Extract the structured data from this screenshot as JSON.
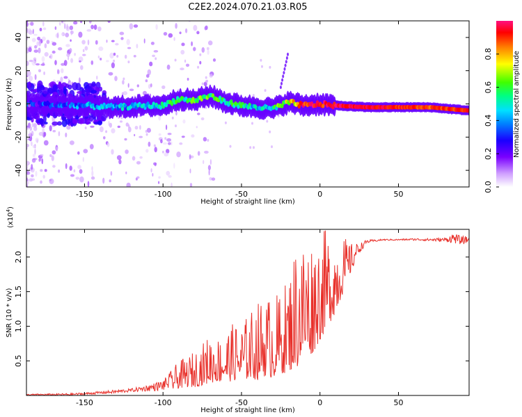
{
  "title": "C2E2.2024.070.21.03.R05",
  "chart_data": [
    {
      "type": "heatmap",
      "name": "spectrogram",
      "xlabel": "Height of straight line (km)",
      "ylabel": "Frequency (Hz)",
      "xlim": [
        -187,
        95
      ],
      "ylim": [
        -50,
        50
      ],
      "xticks": [
        -150,
        -100,
        -50,
        0,
        50
      ],
      "yticks": [
        -40,
        -20,
        0,
        20,
        40
      ],
      "colorbar": {
        "label": "Normalized spectral amplitude",
        "range": [
          0.0,
          1.0
        ],
        "ticks": [
          0.0,
          0.2,
          0.4,
          0.6,
          0.8
        ],
        "colormap": [
          "#ffffff",
          "#d0a0ff",
          "#7a00ff",
          "#1a00ff",
          "#0080ff",
          "#00e0ff",
          "#00ff80",
          "#40ff00",
          "#ffff00",
          "#ff8000",
          "#ff0000",
          "#ff1080"
        ]
      },
      "ridge": {
        "description_free_points_x": [
          -187,
          -150,
          -130,
          -110,
          -100,
          -90,
          -80,
          -70,
          -60,
          -50,
          -40,
          -30,
          -20,
          -10,
          0,
          10,
          30,
          50,
          70,
          95
        ],
        "frequency_hz": [
          0,
          -1,
          -2,
          -1,
          -1,
          3,
          2,
          5,
          1,
          -1,
          -2,
          -3,
          1,
          -1,
          0,
          -1,
          -2,
          -2,
          -2,
          -4
        ],
        "amplitude": [
          0.25,
          0.35,
          0.4,
          0.45,
          0.5,
          0.55,
          0.55,
          0.6,
          0.55,
          0.5,
          0.45,
          0.5,
          0.7,
          0.9,
          0.95,
          0.95,
          0.95,
          0.9,
          0.85,
          0.9
        ]
      }
    },
    {
      "type": "line",
      "name": "snr",
      "xlabel": "Height of straight line (km)",
      "ylabel": "SNR (10 * v/v)",
      "multiplier": "(x10",
      "multiplier_exp": "4",
      "multiplier_close": ")",
      "xlim": [
        -187,
        95
      ],
      "ylim": [
        0,
        2.4
      ],
      "xticks": [
        -150,
        -100,
        -50,
        0,
        50
      ],
      "yticks": [
        0.5,
        1.0,
        1.5,
        2.0
      ],
      "color": "#e8302a",
      "x_envelope": [
        -187,
        -160,
        -150,
        -140,
        -130,
        -120,
        -110,
        -100,
        -95,
        -90,
        -85,
        -80,
        -75,
        -70,
        -65,
        -60,
        -55,
        -50,
        -45,
        -40,
        -35,
        -30,
        -25,
        -20,
        -15,
        -10,
        -5,
        0,
        5,
        10,
        15,
        20,
        25,
        30,
        35,
        40,
        50,
        60,
        70,
        80,
        85,
        90,
        95
      ],
      "y_lower": [
        0.0,
        0.0,
        0.01,
        0.02,
        0.03,
        0.05,
        0.06,
        0.07,
        0.08,
        0.1,
        0.12,
        0.12,
        0.15,
        0.18,
        0.2,
        0.18,
        0.22,
        0.2,
        0.25,
        0.22,
        0.28,
        0.25,
        0.3,
        0.35,
        0.4,
        0.5,
        0.6,
        0.8,
        1.0,
        1.2,
        1.5,
        1.8,
        2.05,
        2.2,
        2.22,
        2.24,
        2.24,
        2.24,
        2.23,
        2.22,
        2.2,
        2.18,
        2.2
      ],
      "y_upper": [
        0.02,
        0.03,
        0.04,
        0.06,
        0.08,
        0.1,
        0.15,
        0.22,
        0.35,
        0.5,
        0.55,
        0.65,
        0.75,
        0.9,
        0.85,
        0.95,
        1.05,
        1.05,
        1.2,
        1.35,
        1.45,
        1.45,
        1.5,
        1.75,
        2.3,
        2.35,
        2.3,
        2.4,
        2.4,
        2.35,
        2.3,
        2.2,
        2.2,
        2.25,
        2.25,
        2.26,
        2.26,
        2.27,
        2.27,
        2.28,
        2.35,
        2.3,
        2.3
      ]
    }
  ]
}
